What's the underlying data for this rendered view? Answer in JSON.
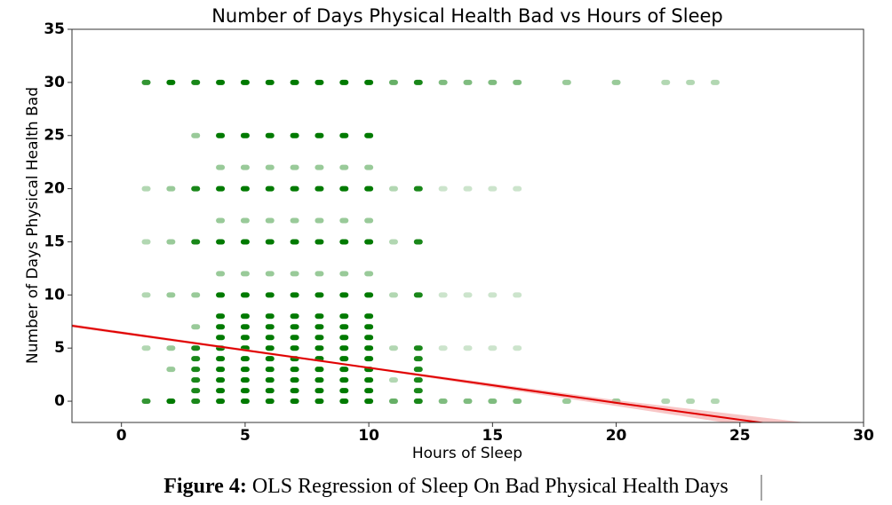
{
  "chart_data": {
    "type": "scatter",
    "title": "Number of Days Physical Health Bad vs Hours of Sleep",
    "x_label": "Hours of Sleep",
    "y_label": "Number of Days Physical Health Bad",
    "xlim": [
      -2,
      30
    ],
    "ylim": [
      -2,
      35
    ],
    "xticks": [
      0,
      5,
      10,
      15,
      20,
      25,
      30
    ],
    "yticks": [
      0,
      5,
      10,
      15,
      20,
      25,
      30,
      35
    ],
    "color": "#007a00",
    "x": [
      1,
      1,
      1,
      1,
      1,
      1,
      2,
      2,
      2,
      2,
      2,
      2,
      2,
      3,
      3,
      3,
      3,
      3,
      3,
      3,
      3,
      3,
      3,
      3,
      3,
      4,
      4,
      4,
      4,
      4,
      4,
      4,
      4,
      4,
      4,
      4,
      4,
      4,
      4,
      4,
      4,
      4,
      5,
      5,
      5,
      5,
      5,
      5,
      5,
      5,
      5,
      5,
      5,
      5,
      5,
      5,
      5,
      5,
      5,
      6,
      6,
      6,
      6,
      6,
      6,
      6,
      6,
      6,
      6,
      6,
      6,
      6,
      6,
      6,
      6,
      6,
      7,
      7,
      7,
      7,
      7,
      7,
      7,
      7,
      7,
      7,
      7,
      7,
      7,
      7,
      7,
      7,
      7,
      8,
      8,
      8,
      8,
      8,
      8,
      8,
      8,
      8,
      8,
      8,
      8,
      8,
      8,
      8,
      8,
      8,
      9,
      9,
      9,
      9,
      9,
      9,
      9,
      9,
      9,
      9,
      9,
      9,
      9,
      9,
      9,
      9,
      9,
      10,
      10,
      10,
      10,
      10,
      10,
      10,
      10,
      10,
      10,
      10,
      10,
      10,
      10,
      10,
      10,
      10,
      11,
      11,
      11,
      11,
      11,
      11,
      11,
      12,
      12,
      12,
      12,
      12,
      12,
      12,
      12,
      12,
      12,
      13,
      13,
      13,
      13,
      13,
      14,
      14,
      14,
      14,
      14,
      15,
      15,
      15,
      15,
      15,
      16,
      16,
      16,
      16,
      16,
      18,
      18,
      20,
      20,
      22,
      22,
      23,
      23,
      24,
      24
    ],
    "y": [
      0,
      30,
      5,
      10,
      15,
      20,
      0,
      30,
      3,
      5,
      10,
      15,
      20,
      0,
      1,
      2,
      3,
      4,
      5,
      15,
      20,
      30,
      7,
      10,
      25,
      0,
      1,
      2,
      3,
      4,
      5,
      6,
      7,
      8,
      10,
      15,
      20,
      25,
      30,
      12,
      17,
      22,
      0,
      1,
      2,
      3,
      4,
      5,
      6,
      7,
      8,
      10,
      15,
      20,
      25,
      30,
      12,
      17,
      22,
      0,
      1,
      2,
      3,
      4,
      5,
      6,
      7,
      8,
      10,
      15,
      20,
      25,
      30,
      12,
      17,
      22,
      0,
      1,
      2,
      3,
      4,
      5,
      6,
      7,
      8,
      10,
      15,
      20,
      25,
      30,
      12,
      17,
      22,
      0,
      1,
      2,
      3,
      4,
      5,
      6,
      7,
      8,
      10,
      15,
      20,
      25,
      30,
      12,
      17,
      22,
      0,
      1,
      2,
      3,
      4,
      5,
      6,
      7,
      8,
      10,
      15,
      20,
      25,
      30,
      12,
      17,
      22,
      0,
      1,
      2,
      3,
      4,
      5,
      6,
      7,
      8,
      10,
      15,
      20,
      25,
      30,
      12,
      17,
      22,
      0,
      30,
      2,
      5,
      10,
      15,
      20,
      0,
      1,
      2,
      3,
      4,
      5,
      10,
      15,
      20,
      30,
      0,
      30,
      5,
      10,
      20,
      0,
      30,
      5,
      10,
      20,
      0,
      30,
      5,
      10,
      20,
      0,
      30,
      5,
      10,
      20,
      0,
      30,
      0,
      30,
      0,
      30,
      0,
      30,
      0,
      30
    ],
    "alpha": [
      0.8,
      0.8,
      0.3,
      0.3,
      0.3,
      0.3,
      1,
      1,
      0.4,
      0.4,
      0.4,
      0.4,
      0.4,
      0.9,
      0.9,
      0.9,
      0.9,
      0.9,
      0.9,
      0.9,
      0.9,
      0.9,
      0.4,
      0.4,
      0.4,
      1,
      1,
      1,
      1,
      1,
      1,
      1,
      1,
      1,
      1,
      1,
      1,
      1,
      1,
      0.4,
      0.4,
      0.4,
      1,
      1,
      1,
      1,
      1,
      1,
      1,
      1,
      1,
      1,
      1,
      1,
      1,
      1,
      0.4,
      0.4,
      0.4,
      1,
      1,
      1,
      1,
      1,
      1,
      1,
      1,
      1,
      1,
      1,
      1,
      1,
      1,
      0.4,
      0.4,
      0.4,
      1,
      1,
      1,
      1,
      1,
      1,
      1,
      1,
      1,
      1,
      1,
      1,
      1,
      1,
      0.4,
      0.4,
      0.4,
      1,
      1,
      1,
      1,
      1,
      1,
      1,
      1,
      1,
      1,
      1,
      1,
      1,
      1,
      0.4,
      0.4,
      0.4,
      1,
      1,
      1,
      1,
      1,
      1,
      1,
      1,
      1,
      1,
      1,
      1,
      1,
      1,
      0.4,
      0.4,
      0.4,
      1,
      1,
      1,
      1,
      1,
      1,
      1,
      1,
      1,
      1,
      1,
      1,
      1,
      1,
      0.4,
      0.4,
      0.4,
      0.6,
      0.6,
      0.3,
      0.3,
      0.3,
      0.3,
      0.3,
      0.9,
      0.9,
      0.9,
      0.9,
      0.9,
      0.9,
      0.9,
      0.9,
      0.9,
      0.9,
      0.5,
      0.5,
      0.2,
      0.2,
      0.2,
      0.5,
      0.5,
      0.2,
      0.2,
      0.2,
      0.5,
      0.5,
      0.2,
      0.2,
      0.2,
      0.5,
      0.5,
      0.2,
      0.2,
      0.2,
      0.4,
      0.4,
      0.4,
      0.4,
      0.3,
      0.3,
      0.3,
      0.3,
      0.3,
      0.3
    ],
    "regression": {
      "color": "#e00000",
      "band_color": "#f4a0a0",
      "x": [
        -2,
        10,
        20,
        28
      ],
      "y": [
        7.1,
        3.15,
        -0.15,
        -2.7
      ],
      "lower": [
        6.95,
        3.05,
        -0.45,
        -3.3
      ],
      "upper": [
        7.25,
        3.25,
        0.1,
        -2.1
      ]
    },
    "caption_label": "Figure 4:",
    "caption": "OLS Regression of Sleep On Bad Physical Health Days"
  }
}
